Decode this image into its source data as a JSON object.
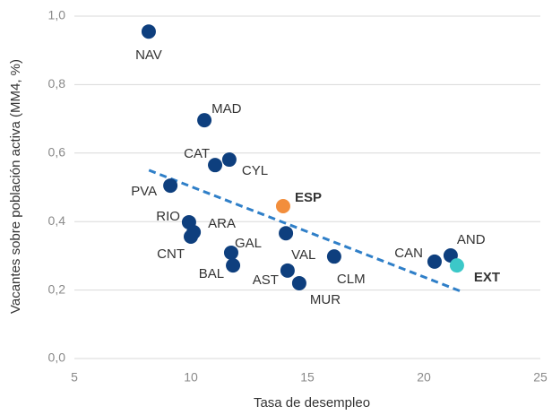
{
  "chart_data": {
    "type": "scatter",
    "x_label": "Tasa de desempleo",
    "y_label": "Vacantes sobre población activa (MM4, %)",
    "labels": [
      "NAV",
      "MAD",
      "CAT",
      "CYL",
      "PVA",
      "ESP",
      "RIO",
      "ARA",
      "CNT",
      "GAL",
      "BAL",
      "VAL",
      "AST",
      "MUR",
      "CLM",
      "CAN",
      "AND",
      "EXT"
    ],
    "x": [
      8.19,
      10.58,
      11.04,
      11.65,
      9.12,
      13.96,
      9.92,
      10.12,
      10.0,
      11.73,
      11.81,
      14.08,
      14.15,
      14.65,
      16.15,
      20.46,
      21.15,
      21.42
    ],
    "y": [
      0.955,
      0.696,
      0.565,
      0.581,
      0.505,
      0.445,
      0.398,
      0.369,
      0.356,
      0.309,
      0.272,
      0.366,
      0.257,
      0.22,
      0.298,
      0.283,
      0.301,
      0.272
    ],
    "color": "#0e3f7e",
    "colors": [
      "#0e3f7e",
      "#0e3f7e",
      "#0e3f7e",
      "#0e3f7e",
      "#0e3f7e",
      "#f28e3c",
      "#0e3f7e",
      "#0e3f7e",
      "#0e3f7e",
      "#0e3f7e",
      "#0e3f7e",
      "#0e3f7e",
      "#0e3f7e",
      "#0e3f7e",
      "#0e3f7e",
      "#0e3f7e",
      "#0e3f7e",
      "#3cc8c8"
    ],
    "trendline": {
      "x": [
        8.2,
        21.6
      ],
      "y": [
        0.55,
        0.196
      ],
      "color": "#2f7fc8"
    },
    "xlim": [
      5,
      25
    ],
    "xticks": [
      5,
      10,
      15,
      20,
      25
    ],
    "ylim": [
      0,
      1.0
    ],
    "yticks": [
      {
        "value": 0,
        "label": "0,0"
      },
      {
        "value": 0.2,
        "label": "0,2"
      },
      {
        "value": 0.4,
        "label": "0,4"
      },
      {
        "value": 0.6,
        "label": "0,6"
      },
      {
        "value": 0.8,
        "label": "0,8"
      },
      {
        "value": 1.0,
        "label": "1,0"
      }
    ],
    "grid": true
  }
}
